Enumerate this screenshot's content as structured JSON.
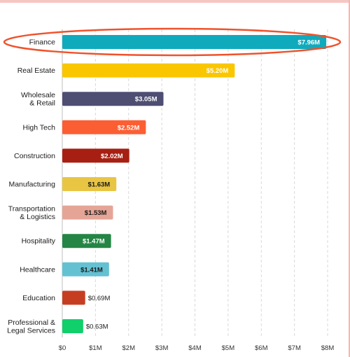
{
  "chart_data": {
    "type": "bar",
    "orientation": "horizontal",
    "categories": [
      [
        "Finance"
      ],
      [
        "Real Estate"
      ],
      [
        "Wholesale",
        "& Retail"
      ],
      [
        "High Tech"
      ],
      [
        "Construction"
      ],
      [
        "Manufacturing"
      ],
      [
        "Transportation",
        "& Logistics"
      ],
      [
        "Hospitality"
      ],
      [
        "Healthcare"
      ],
      [
        "Education"
      ],
      [
        "Professional &",
        "Legal Services"
      ]
    ],
    "values": [
      7.96,
      5.2,
      3.05,
      2.52,
      2.02,
      1.63,
      1.53,
      1.47,
      1.41,
      0.69,
      0.63
    ],
    "value_labels": [
      "$7.96M",
      "$5.20M",
      "$3.05M",
      "$2.52M",
      "$2.02M",
      "$1.63M",
      "$1.53M",
      "$1.47M",
      "$1.41M",
      "$0.69M",
      "$0.63M"
    ],
    "colors": [
      "#10aabd",
      "#f9c600",
      "#4e4e73",
      "#fc5e33",
      "#a71f12",
      "#e9c544",
      "#e5a596",
      "#248544",
      "#63c1d2",
      "#c63e22",
      "#0fd06b"
    ],
    "value_label_colors": [
      "#ffffff",
      "#ffffff",
      "#ffffff",
      "#ffffff",
      "#ffffff",
      "#1a1a1a",
      "#1a1a1a",
      "#ffffff",
      "#1a1a1a",
      "#1a1a1a",
      "#1a1a1a"
    ],
    "value_label_inside": [
      true,
      true,
      true,
      true,
      true,
      true,
      true,
      true,
      true,
      false,
      false
    ],
    "x_ticks": [
      0,
      1,
      2,
      3,
      4,
      5,
      6,
      7,
      8
    ],
    "x_tick_labels": [
      "$0",
      "$1M",
      "$2M",
      "$3M",
      "$4M",
      "$5M",
      "$6M",
      "$7M",
      "$8M"
    ],
    "xlim": [
      0,
      8
    ],
    "grid": "vertical-dashed",
    "highlight_category": "Finance",
    "highlight_color": "#f0522b",
    "title": "",
    "xlabel": "",
    "ylabel": ""
  }
}
